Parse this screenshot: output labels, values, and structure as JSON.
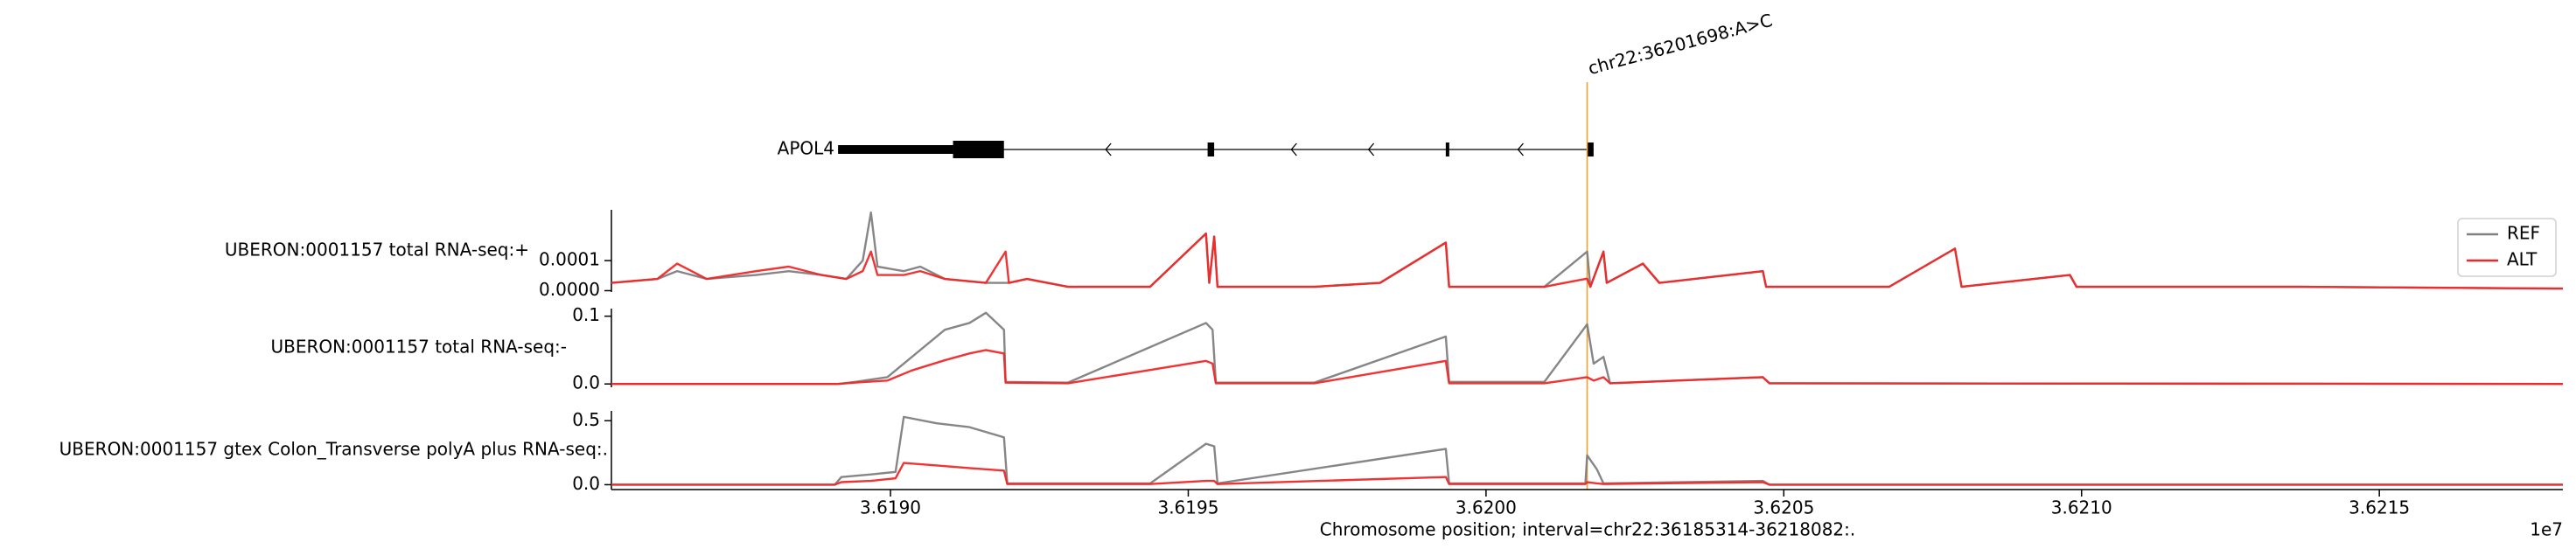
{
  "chart_data": {
    "type": "genome_tracks",
    "xlim": [
      36185314,
      36218082
    ],
    "xticks": [
      {
        "value": 36190000,
        "label": "3.6190"
      },
      {
        "value": 36195000,
        "label": "3.6195"
      },
      {
        "value": 36200000,
        "label": "3.6200"
      },
      {
        "value": 36205000,
        "label": "3.6205"
      },
      {
        "value": 36210000,
        "label": "3.6210"
      },
      {
        "value": 36215000,
        "label": "3.6215"
      }
    ],
    "x_offset_label": "1e7",
    "x_label": "Chromosome position; interval=chr22:36185314-36218082:.",
    "variant": {
      "position": 36201698,
      "label": "chr22:36201698:A>C",
      "color": "#f0a030"
    },
    "gene": {
      "name": "APOL4",
      "start": 36189120,
      "end": 36201806,
      "strand": "-",
      "utr": [
        [
          36189120,
          36191050
        ]
      ],
      "exons": [
        [
          36191050,
          36191905
        ],
        [
          36195325,
          36195435
        ],
        [
          36199324,
          36199379
        ],
        [
          36201696,
          36201806
        ]
      ]
    },
    "series": [
      {
        "name": "REF",
        "color": "#808080"
      },
      {
        "name": "ALT",
        "color": "#f02828"
      }
    ],
    "legend": "upper right",
    "tracks": [
      {
        "type": "line",
        "label": "UBERON:0001157 total RNA-seq:+",
        "ylim": [
          -4.4e-06,
          0.000269
        ],
        "yticks": [
          {
            "value": 0,
            "label": "0.0000"
          },
          {
            "value": 0.0001,
            "label": "0.0001"
          }
        ],
        "x": [
          36185314,
          36186086,
          36186417,
          36186914,
          36187741,
          36188293,
          36188844,
          36189258,
          36189534,
          36189672,
          36189782,
          36190223,
          36190499,
          36190913,
          36191602,
          36191933,
          36191988,
          36192292,
          36192981,
          36194360,
          36195298,
          36195353,
          36195436,
          36195491,
          36197118,
          36198221,
          36199325,
          36199380,
          36200979,
          36201698,
          36201752,
          36201972,
          36202027,
          36202634,
          36202910,
          36204648,
          36204703,
          36206771,
          36207874,
          36207985,
          36209805,
          36209915,
          36213666,
          36218082
        ],
        "series": [
          {
            "values": [
              2.6e-05,
              3.9e-05,
              6.5e-05,
              3.9e-05,
              5.2e-05,
              6.5e-05,
              5.2e-05,
              3.9e-05,
              0.0001,
              0.00026,
              8e-05,
              6.5e-05,
              8e-05,
              3.9e-05,
              2.6e-05,
              2.6e-05,
              2.6e-05,
              3.9e-05,
              1.3e-05,
              1.3e-05,
              0.00019,
              2.6e-05,
              0.00018,
              1.3e-05,
              1.3e-05,
              2.6e-05,
              0.00016,
              1.3e-05,
              1.3e-05,
              0.00013,
              1.3e-05,
              0.00013,
              2.6e-05,
              9e-05,
              2.6e-05,
              6.5e-05,
              1.3e-05,
              1.3e-05,
              0.00014,
              1.3e-05,
              5.2e-05,
              1.3e-05,
              1.3e-05,
              7e-06
            ]
          },
          {
            "values": [
              2.6e-05,
              3.9e-05,
              9e-05,
              3.9e-05,
              6.5e-05,
              8e-05,
              5.2e-05,
              3.9e-05,
              6.5e-05,
              0.00013,
              5.2e-05,
              5.2e-05,
              6.5e-05,
              3.9e-05,
              2.6e-05,
              0.00013,
              2.6e-05,
              3.9e-05,
              1.3e-05,
              1.3e-05,
              0.00019,
              2.6e-05,
              0.00018,
              1.3e-05,
              1.3e-05,
              2.6e-05,
              0.00016,
              1.3e-05,
              1.3e-05,
              4e-05,
              1.3e-05,
              0.00013,
              2.6e-05,
              9e-05,
              2.6e-05,
              6.5e-05,
              1.3e-05,
              1.3e-05,
              0.00014,
              1.3e-05,
              5.2e-05,
              1.3e-05,
              1.3e-05,
              7e-06
            ]
          }
        ]
      },
      {
        "type": "line",
        "label": "UBERON:0001157 total RNA-seq:-",
        "ylim": [
          -0.0049,
          0.1112
        ],
        "yticks": [
          {
            "value": 0,
            "label": "0.0"
          },
          0.1
        ],
        "x": [
          36185314,
          36189120,
          36189396,
          36189947,
          36190361,
          36190913,
          36191326,
          36191602,
          36191906,
          36191933,
          36192981,
          36195298,
          36195408,
          36195463,
          36197118,
          36199325,
          36199380,
          36200979,
          36201698,
          36201807,
          36201972,
          36202083,
          36204648,
          36204758,
          36218082
        ],
        "series": [
          {
            "values": [
              0,
              0,
              0.003,
              0.01,
              0.04,
              0.08,
              0.09,
              0.105,
              0.08,
              0.003,
              0.002,
              0.09,
              0.08,
              0.002,
              0.002,
              0.07,
              0.003,
              0.003,
              0.088,
              0.03,
              0.04,
              0.001,
              0.01,
              0.001,
              0
            ]
          },
          {
            "values": [
              0,
              0,
              0.002,
              0.005,
              0.02,
              0.035,
              0.045,
              0.05,
              0.045,
              0.002,
              0.001,
              0.034,
              0.03,
              0.001,
              0.001,
              0.034,
              0.001,
              0.001,
              0.01,
              0.005,
              0.01,
              0.001,
              0.01,
              0.001,
              0
            ]
          }
        ]
      },
      {
        "type": "line",
        "label": "UBERON:0001157 gtex Colon_Transverse polyA plus RNA-seq:.",
        "ylim": [
          -0.038,
          0.577
        ],
        "yticks": [
          {
            "value": 0,
            "label": "0.0"
          },
          0.5
        ],
        "x": [
          36185314,
          36189065,
          36189175,
          36189672,
          36190085,
          36190223,
          36190775,
          36191326,
          36191906,
          36191961,
          36194360,
          36195298,
          36195436,
          36195491,
          36199325,
          36199380,
          36201669,
          36201698,
          36201862,
          36201972,
          36204648,
          36204758,
          36218082
        ],
        "series": [
          {
            "values": [
              0,
              0,
              0.06,
              0.08,
              0.1,
              0.53,
              0.48,
              0.45,
              0.37,
              0.01,
              0.01,
              0.32,
              0.3,
              0.01,
              0.28,
              0.01,
              0.01,
              0.23,
              0.12,
              0.01,
              0.03,
              0,
              0
            ]
          },
          {
            "values": [
              0,
              0,
              0.02,
              0.03,
              0.05,
              0.17,
              0.15,
              0.13,
              0.11,
              0.005,
              0.005,
              0.03,
              0.03,
              0.005,
              0.06,
              0.005,
              0.005,
              0.02,
              0.01,
              0.005,
              0.02,
              0,
              0
            ]
          }
        ]
      }
    ]
  }
}
